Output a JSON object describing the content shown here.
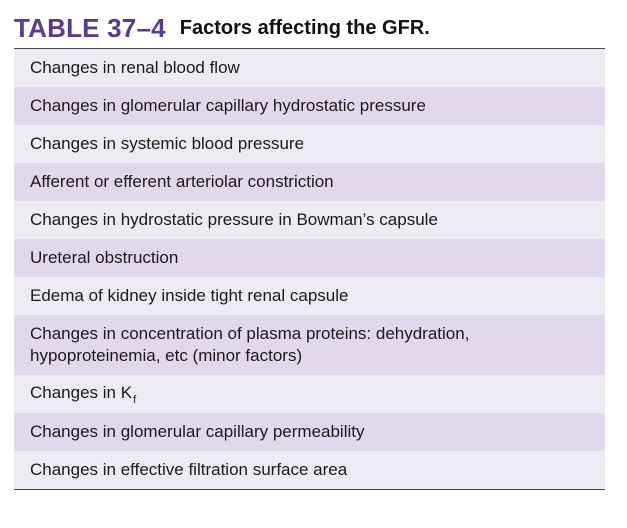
{
  "table": {
    "number": "TABLE 37–4",
    "title": "Factors affecting the GFR.",
    "rows": [
      {
        "text": "Changes in renal blood flow"
      },
      {
        "text": "Changes in glomerular capillary hydrostatic pressure"
      },
      {
        "text": "Changes in systemic blood pressure"
      },
      {
        "text": "Afferent or efferent arteriolar constriction"
      },
      {
        "text": "Changes in hydrostatic pressure in Bowman’s capsule"
      },
      {
        "text": "Ureteral obstruction"
      },
      {
        "text": "Edema of kidney inside tight renal capsule"
      },
      {
        "text": "Changes in concentration of plasma proteins: dehydration, hypoproteinemia, etc (minor factors)"
      },
      {
        "text": "Changes in K",
        "subscript": "f"
      },
      {
        "text": "Changes in glomerular capillary permeability"
      },
      {
        "text": "Changes in effective filtration surface area"
      }
    ]
  }
}
